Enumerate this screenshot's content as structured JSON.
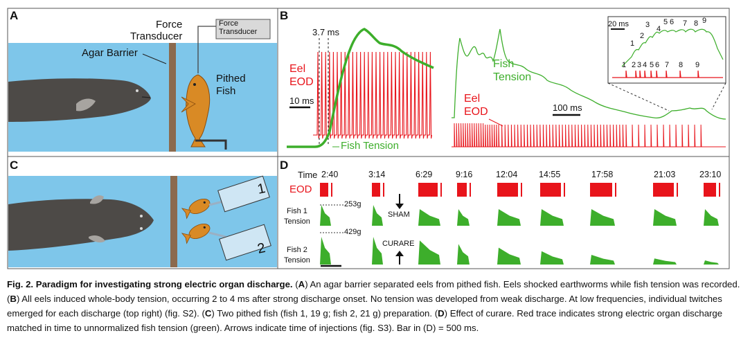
{
  "panels": {
    "a": {
      "letter": "A",
      "force_transducer_label": "Force\nTransducer",
      "transducer_box_label": "Force\nTransducer",
      "agar_barrier_label": "Agar Barrier",
      "pithed_fish_label": "Pithed\nFish"
    },
    "b": {
      "letter": "B",
      "latency_label": "3.7 ms",
      "eel_eod_label": "Eel\nEOD",
      "scale_10ms": "10 ms",
      "fish_tension_label": "Fish Tension",
      "fish_tension_label_2": "Fish\nTension",
      "eel_eod_label_2": "Eel\nEOD",
      "scale_100ms": "100 ms",
      "inset_scale": "20 ms",
      "inset_twitch_numbers": [
        "1",
        "2",
        "3",
        "4",
        "5",
        "6",
        "7",
        "8",
        "9"
      ],
      "inset_eod_numbers": [
        "1",
        "2",
        "3",
        "4",
        "5",
        "6",
        "7",
        "8",
        "9"
      ]
    },
    "c": {
      "letter": "C",
      "fish_numbers": [
        "1",
        "2"
      ]
    },
    "d": {
      "letter": "D",
      "time_label": "Time",
      "times": [
        "2:40",
        "3:14",
        "6:29",
        "9:16",
        "12:04",
        "14:55",
        "17:58",
        "21:03",
        "23:10"
      ],
      "eod_label": "EOD",
      "fish1_label": "Fish 1\nTension",
      "fish2_label": "Fish 2\nTension",
      "fish1_scale": "253g",
      "fish2_scale": "429g",
      "sham_label": "SHAM",
      "curare_label": "CURARE"
    }
  },
  "colors": {
    "water": "#7ec6ea",
    "eel": "#4d4a47",
    "barrier": "#8b6a4e",
    "fish": "#d98a25",
    "eod_red": "#e8141b",
    "tension_green": "#3dae2b"
  },
  "caption": {
    "fig_label": "Fig. 2.",
    "title": "Paradigm for investigating strong electric organ discharge.",
    "part_a_letter": "A",
    "part_a_text": "An agar barrier separated eels from pithed fish. Eels shocked earthworms while fish tension was recorded.",
    "part_b_letter": "B",
    "part_b_text": "All eels induced whole-body tension, occurring 2 to 4 ms after strong discharge onset. No tension was developed from weak discharge. At low frequencies, individual twitches emerged for each discharge (top right) (fig. S2).",
    "part_c_letter": "C",
    "part_c_text": "Two pithed fish (fish 1, 19 g; fish 2, 21 g) preparation.",
    "part_d_letter": "D",
    "part_d_text": "Effect of curare. Red trace indicates strong electric organ discharge matched in time to unnormalized fish tension (green). Arrows indicate time of injections (fig. S3). Bar in (D) = 500 ms."
  }
}
